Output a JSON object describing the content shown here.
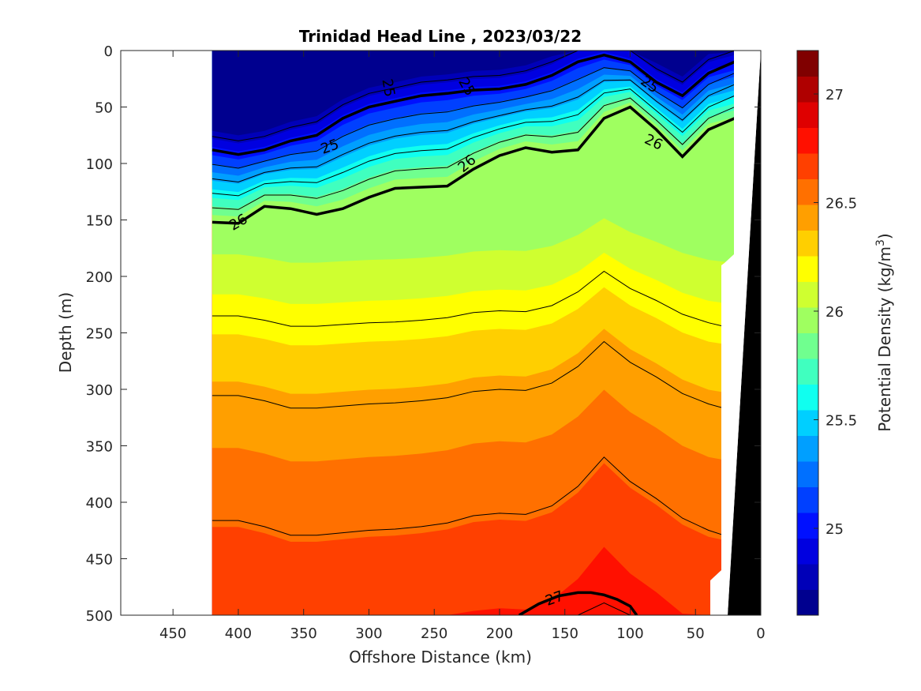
{
  "chart_data": {
    "type": "heatmap",
    "title": "Trinidad Head Line , 2023/03/22",
    "xlabel": "Offshore Distance (km)",
    "ylabel": "Depth (m)",
    "xlim": [
      490,
      0
    ],
    "ylim": [
      500,
      0
    ],
    "x_direction": "reversed",
    "y_direction": "reversed",
    "xticks": [
      450,
      400,
      350,
      300,
      250,
      200,
      150,
      100,
      50,
      0
    ],
    "yticks": [
      0,
      50,
      100,
      150,
      200,
      250,
      300,
      350,
      400,
      450,
      500
    ],
    "colorbar": {
      "label": "Potential Density (kg/m",
      "label_superscript": "3",
      "label_close": ")",
      "clim": [
        24.6,
        27.2
      ],
      "ticks": [
        25,
        25.5,
        26,
        26.5,
        27
      ],
      "colors": [
        "#00008f",
        "#0000b8",
        "#0000e0",
        "#0010ff",
        "#0040ff",
        "#0070ff",
        "#009fff",
        "#00cfff",
        "#10ffef",
        "#40ffbf",
        "#70ff8f",
        "#9fff60",
        "#cfff30",
        "#ffff00",
        "#ffcf00",
        "#ff9f00",
        "#ff7000",
        "#ff4000",
        "#ff1000",
        "#df0000",
        "#af0000",
        "#800000"
      ]
    },
    "x": [
      420,
      400,
      380,
      360,
      340,
      320,
      300,
      280,
      260,
      240,
      220,
      200,
      180,
      160,
      140,
      120,
      100,
      80,
      60,
      40,
      20
    ],
    "contour_lines": [
      {
        "level": 25.0,
        "labeled": true,
        "label": "25",
        "style": "bold",
        "x": [
          420,
          400,
          380,
          360,
          340,
          320,
          300,
          280,
          260,
          240,
          220,
          200,
          180,
          160,
          140,
          120,
          100,
          80,
          60,
          40,
          20
        ],
        "depth": [
          88,
          92,
          88,
          80,
          75,
          60,
          50,
          45,
          40,
          38,
          35,
          34,
          30,
          22,
          10,
          4,
          10,
          28,
          40,
          20,
          10
        ]
      },
      {
        "level": 26.0,
        "labeled": true,
        "label": "26",
        "style": "bold",
        "x": [
          420,
          400,
          380,
          360,
          340,
          320,
          300,
          280,
          260,
          240,
          220,
          200,
          180,
          160,
          140,
          120,
          100,
          80,
          60,
          40,
          20
        ],
        "depth": [
          152,
          153,
          138,
          140,
          145,
          140,
          130,
          122,
          121,
          120,
          105,
          93,
          86,
          90,
          88,
          60,
          50,
          70,
          94,
          70,
          60
        ]
      },
      {
        "level": 27.0,
        "labeled": true,
        "label": "27",
        "style": "bold",
        "x": [
          185,
          170,
          155,
          140,
          130,
          120,
          110,
          100,
          95
        ],
        "depth": [
          500,
          490,
          483,
          480,
          480,
          482,
          486,
          492,
          500
        ]
      }
    ],
    "depth_bottom": [
      {
        "x": 20,
        "depth": 0
      },
      {
        "x": 25,
        "depth": 90
      },
      {
        "x": 30,
        "depth": 230
      },
      {
        "x": 35,
        "depth": 400
      },
      {
        "x": 40,
        "depth": 500
      }
    ]
  }
}
